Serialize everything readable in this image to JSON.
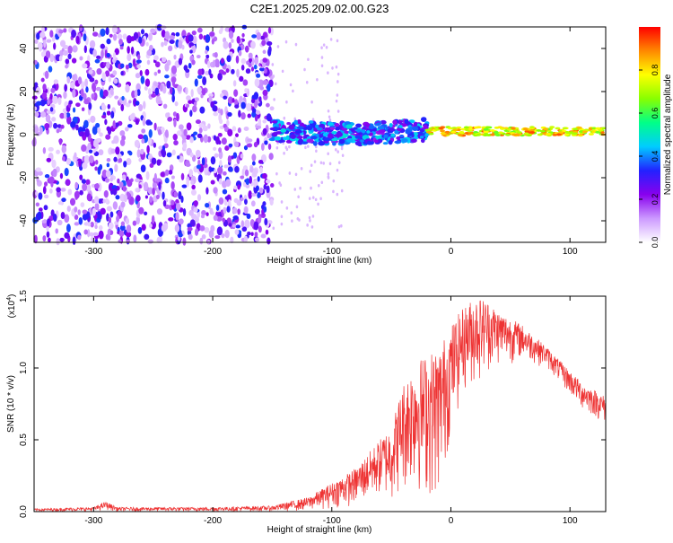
{
  "title": "C2E1.2025.209.02.00.G23",
  "chart_data": [
    {
      "type": "heatmap",
      "xlabel": "Height of straight line (km)",
      "ylabel": "Frequency (Hz)",
      "xlim": [
        -350,
        130
      ],
      "ylim": [
        -50,
        50
      ],
      "x_ticks": [
        -300,
        -200,
        -100,
        0,
        100
      ],
      "y_ticks": [
        -40,
        -20,
        0,
        20,
        40
      ],
      "colorbar": {
        "label": "Normalized spectral amplitude",
        "range": [
          0,
          1
        ],
        "ticks": [
          0.0,
          0.2,
          0.4,
          0.6,
          0.8
        ],
        "tick_labels": [
          "0.0",
          "0.2",
          "0.4",
          "0.6",
          "0.8"
        ],
        "colors": [
          "#ffffff",
          "#cc99ff",
          "#8800ee",
          "#2222ff",
          "#00ccff",
          "#00ff88",
          "#88ff00",
          "#ffff00",
          "#ff8800",
          "#ff0000"
        ]
      },
      "regions": [
        {
          "x_from": -350,
          "x_to": -150,
          "freq_from": -50,
          "freq_to": 50,
          "description_level": 0.15
        },
        {
          "x_from": -150,
          "x_to": -20,
          "freq_center": 2,
          "freq_halfwidth": 5,
          "level": 0.4
        },
        {
          "x_from": -20,
          "x_to": 130,
          "freq_center": 1.5,
          "freq_halfwidth": 2,
          "level": 0.9
        }
      ]
    },
    {
      "type": "line",
      "xlabel": "Height of straight line (km)",
      "ylabel": "SNR (10 * v/v)",
      "multiplier_label": "(x10",
      "multiplier_exp": "4",
      "xlim": [
        -350,
        130
      ],
      "ylim": [
        0,
        1.5
      ],
      "x_ticks": [
        -300,
        -200,
        -100,
        0,
        100
      ],
      "y_ticks": [
        "0.0",
        "0.5",
        "1.0",
        "1.5"
      ],
      "series_color": "#ee3333",
      "envelope": {
        "x": [
          -350,
          -300,
          -290,
          -280,
          -200,
          -150,
          -120,
          -100,
          -80,
          -60,
          -50,
          -40,
          -30,
          -20,
          -10,
          0,
          10,
          20,
          30,
          40,
          60,
          80,
          100,
          110,
          120,
          130
        ],
        "upper": [
          0.02,
          0.03,
          0.07,
          0.03,
          0.03,
          0.04,
          0.1,
          0.2,
          0.3,
          0.5,
          0.6,
          0.9,
          1.05,
          1.1,
          1.15,
          1.3,
          1.42,
          1.5,
          1.48,
          1.4,
          1.3,
          1.15,
          0.98,
          0.9,
          0.85,
          0.8
        ],
        "lower": [
          0.0,
          0.0,
          0.01,
          0.0,
          0.0,
          0.0,
          0.0,
          0.02,
          0.03,
          0.08,
          0.05,
          0.1,
          0.12,
          0.05,
          0.02,
          0.5,
          0.8,
          0.85,
          0.95,
          1.0,
          1.05,
          1.0,
          0.8,
          0.7,
          0.65,
          0.6
        ]
      }
    }
  ]
}
